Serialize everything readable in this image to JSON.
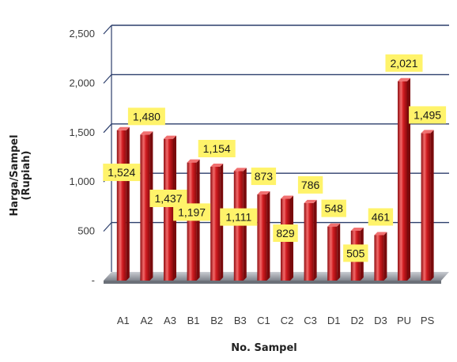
{
  "chart_data": {
    "type": "bar",
    "categories": [
      "A1",
      "A2",
      "A3",
      "B1",
      "B2",
      "B3",
      "C1",
      "C2",
      "C3",
      "D1",
      "D2",
      "D3",
      "PU",
      "PS"
    ],
    "values": [
      1524,
      1480,
      1437,
      1197,
      1154,
      1111,
      873,
      829,
      786,
      548,
      505,
      461,
      2021,
      1495
    ],
    "value_labels": [
      "1,524",
      "1,480",
      "1,437",
      "1,197",
      "1,154",
      "1,111",
      "873",
      "829",
      "786",
      "548",
      "505",
      "461",
      "2,021",
      "1,495"
    ],
    "label_placement": [
      "inside",
      "above",
      "inside",
      "inside",
      "above",
      "inside",
      "above",
      "inside",
      "above",
      "above",
      "inside",
      "above",
      "above",
      "above"
    ],
    "ylim": [
      0,
      2500
    ],
    "yticks": [
      0,
      500,
      1000,
      1500,
      2000,
      2500
    ],
    "ytick_labels": [
      "-",
      "500",
      "1,000",
      "1,500",
      "2,000",
      "2,500"
    ],
    "xlabel": "No. Sampel",
    "ylabel_line1": "Harga/Sampel",
    "ylabel_line2": "(Rupiah)",
    "grid": true,
    "colors": {
      "bar": "#c8181c",
      "bar_light": "#f07070",
      "bar_dark": "#7a0a0c",
      "label_bg": "#fff36a",
      "gridline": "#2c3e6b",
      "floor": "#8a8f98"
    }
  }
}
